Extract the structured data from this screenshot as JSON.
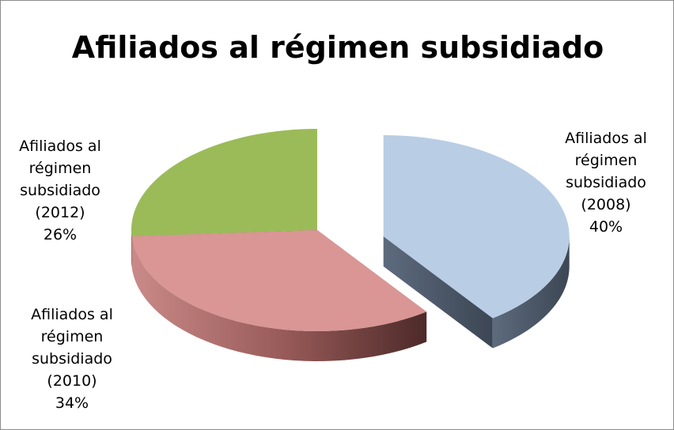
{
  "chart_data": {
    "type": "pie",
    "title": "Afiliados al régimen subsidiado",
    "categories": [
      "Afiliados al régimen subsidiado (2008)",
      "Afiliados al régimen subsidiado (2010)",
      "Afiliados al régimen subsidiado (2012)"
    ],
    "values": [
      40,
      34,
      26
    ],
    "value_labels": [
      "40%",
      "34%",
      "26%"
    ],
    "colors": [
      "#b9cde5",
      "#d99694",
      "#9bbb59"
    ],
    "exploded": [
      true,
      false,
      false
    ]
  }
}
